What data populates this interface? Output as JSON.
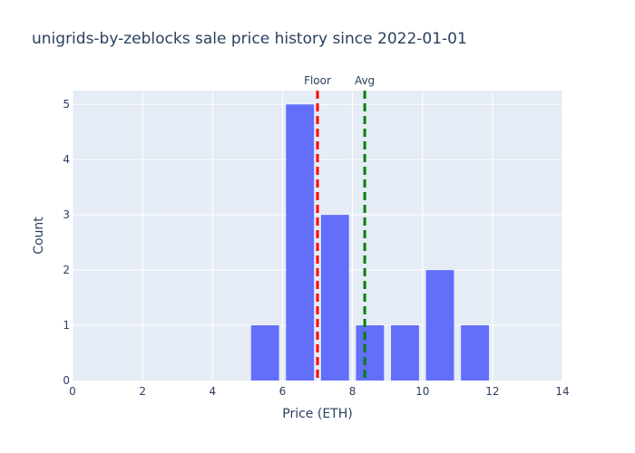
{
  "chart_data": {
    "type": "bar",
    "title": "unigrids-by-zeblocks sale price history since 2022-01-01",
    "xlabel": "Price (ETH)",
    "ylabel": "Count",
    "xlim": [
      0,
      14
    ],
    "ylim": [
      0,
      5.25
    ],
    "xticks": [
      0,
      2,
      4,
      6,
      8,
      10,
      12,
      14
    ],
    "yticks": [
      0,
      1,
      2,
      3,
      4,
      5
    ],
    "bin_width": 1,
    "bins": [
      {
        "start": 5,
        "end": 6,
        "count": 1
      },
      {
        "start": 6,
        "end": 7,
        "count": 5
      },
      {
        "start": 7,
        "end": 8,
        "count": 3
      },
      {
        "start": 8,
        "end": 9,
        "count": 1
      },
      {
        "start": 9,
        "end": 10,
        "count": 1
      },
      {
        "start": 10,
        "end": 11,
        "count": 2
      },
      {
        "start": 11,
        "end": 12,
        "count": 1
      }
    ],
    "bar_color": "#636efa",
    "plot_bgcolor": "#e5ecf6",
    "grid": true,
    "reference_lines": [
      {
        "label": "Floor",
        "x": 7.0,
        "color": "#ff0000",
        "style": "dashed"
      },
      {
        "label": "Avg",
        "x": 8.35,
        "color": "#008000",
        "style": "dashed"
      }
    ]
  }
}
